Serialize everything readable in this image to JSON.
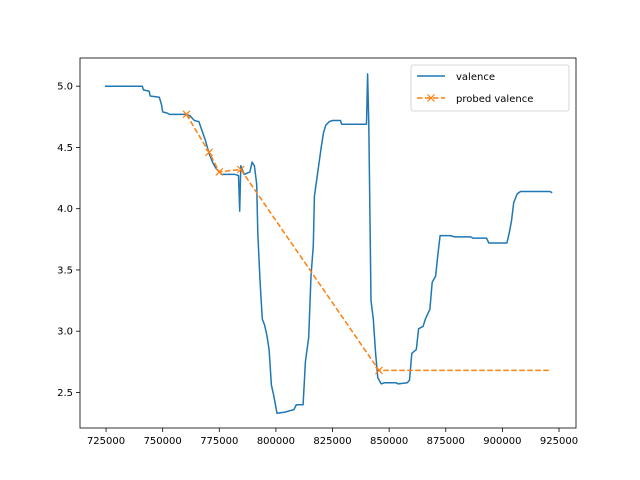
{
  "chart_data": {
    "type": "line",
    "title": "",
    "xlabel": "",
    "ylabel": "",
    "xlim": [
      713500,
      932500
    ],
    "ylim": [
      2.21,
      5.23
    ],
    "xticks": [
      725000,
      750000,
      775000,
      800000,
      825000,
      850000,
      875000,
      900000,
      925000
    ],
    "xtick_labels": [
      "725000",
      "750000",
      "775000",
      "800000",
      "825000",
      "850000",
      "875000",
      "900000",
      "925000"
    ],
    "yticks": [
      2.5,
      3.0,
      3.5,
      4.0,
      4.5,
      5.0
    ],
    "ytick_labels": [
      "2.5",
      "3.0",
      "3.5",
      "4.0",
      "4.5",
      "5.0"
    ],
    "grid": false,
    "legend": {
      "position": "top-right"
    },
    "series": [
      {
        "name": "valence",
        "color": "#1f77b4",
        "style": "solid",
        "marker": "none",
        "points": [
          [
            724500,
            5.0
          ],
          [
            741000,
            5.0
          ],
          [
            741500,
            4.97
          ],
          [
            744000,
            4.96
          ],
          [
            744500,
            4.92
          ],
          [
            748500,
            4.91
          ],
          [
            749500,
            4.85
          ],
          [
            750000,
            4.79
          ],
          [
            752000,
            4.78
          ],
          [
            753000,
            4.77
          ],
          [
            760000,
            4.77
          ],
          [
            762000,
            4.76
          ],
          [
            764000,
            4.72
          ],
          [
            766000,
            4.71
          ],
          [
            767500,
            4.63
          ],
          [
            769000,
            4.55
          ],
          [
            770500,
            4.45
          ],
          [
            772000,
            4.38
          ],
          [
            773500,
            4.33
          ],
          [
            775000,
            4.3
          ],
          [
            776000,
            4.28
          ],
          [
            780000,
            4.28
          ],
          [
            782000,
            4.28
          ],
          [
            783500,
            4.27
          ],
          [
            784000,
            3.98
          ],
          [
            784500,
            4.35
          ],
          [
            786000,
            4.28
          ],
          [
            788500,
            4.3
          ],
          [
            789500,
            4.38
          ],
          [
            790500,
            4.35
          ],
          [
            791500,
            4.2
          ],
          [
            792000,
            3.8
          ],
          [
            793000,
            3.4
          ],
          [
            794000,
            3.1
          ],
          [
            795000,
            3.05
          ],
          [
            796000,
            2.97
          ],
          [
            797000,
            2.85
          ],
          [
            798000,
            2.56
          ],
          [
            799000,
            2.48
          ],
          [
            800500,
            2.33
          ],
          [
            804000,
            2.34
          ],
          [
            806000,
            2.35
          ],
          [
            808000,
            2.36
          ],
          [
            809000,
            2.4
          ],
          [
            812000,
            2.4
          ],
          [
            813000,
            2.75
          ],
          [
            814500,
            2.95
          ],
          [
            815500,
            3.45
          ],
          [
            816500,
            3.7
          ],
          [
            817000,
            4.1
          ],
          [
            818500,
            4.3
          ],
          [
            820000,
            4.5
          ],
          [
            821000,
            4.62
          ],
          [
            822000,
            4.68
          ],
          [
            823500,
            4.71
          ],
          [
            825000,
            4.72
          ],
          [
            828500,
            4.72
          ],
          [
            829000,
            4.69
          ],
          [
            835000,
            4.69
          ],
          [
            839000,
            4.69
          ],
          [
            840000,
            4.69
          ],
          [
            840500,
            5.1
          ],
          [
            841000,
            4.69
          ],
          [
            842000,
            3.25
          ],
          [
            843000,
            3.1
          ],
          [
            844000,
            2.82
          ],
          [
            845000,
            2.62
          ],
          [
            846500,
            2.57
          ],
          [
            848000,
            2.58
          ],
          [
            853000,
            2.58
          ],
          [
            854000,
            2.57
          ],
          [
            858000,
            2.58
          ],
          [
            859000,
            2.6
          ],
          [
            860000,
            2.82
          ],
          [
            862000,
            2.85
          ],
          [
            863000,
            3.02
          ],
          [
            865000,
            3.04
          ],
          [
            866000,
            3.1
          ],
          [
            868000,
            3.18
          ],
          [
            869000,
            3.4
          ],
          [
            870500,
            3.45
          ],
          [
            871500,
            3.62
          ],
          [
            872500,
            3.78
          ],
          [
            877000,
            3.78
          ],
          [
            879000,
            3.77
          ],
          [
            886000,
            3.77
          ],
          [
            887000,
            3.76
          ],
          [
            893000,
            3.76
          ],
          [
            894000,
            3.72
          ],
          [
            902000,
            3.72
          ],
          [
            903000,
            3.8
          ],
          [
            904000,
            3.9
          ],
          [
            905000,
            4.05
          ],
          [
            906500,
            4.12
          ],
          [
            908000,
            4.14
          ],
          [
            921000,
            4.14
          ],
          [
            922000,
            4.13
          ]
        ]
      },
      {
        "name": "probed valence",
        "color": "#ff7f0e",
        "style": "dashed",
        "marker": "x",
        "points": [
          [
            760500,
            4.77
          ],
          [
            770500,
            4.46
          ],
          [
            775000,
            4.3
          ],
          [
            784500,
            4.32
          ],
          [
            845500,
            2.68
          ],
          [
            921000,
            2.68
          ]
        ],
        "marker_points": [
          [
            760500,
            4.77
          ],
          [
            770500,
            4.46
          ],
          [
            775000,
            4.3
          ],
          [
            784500,
            4.32
          ],
          [
            845500,
            2.68
          ]
        ]
      }
    ]
  }
}
